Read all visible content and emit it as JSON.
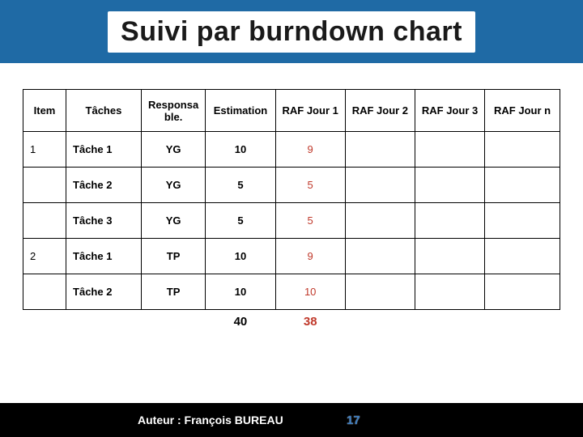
{
  "title": "Suivi par burndown chart",
  "colors": {
    "header_bg": "#1f6aa5",
    "raf1_text": "#c0392b",
    "footer_bg": "#000000",
    "pagenum": "#3a7bbf"
  },
  "table": {
    "columns": [
      "Item",
      "Tâches",
      "Responsa ble.",
      "Estimation",
      "RAF Jour 1",
      "RAF Jour 2",
      "RAF Jour 3",
      "RAF Jour n"
    ],
    "col_widths_pct": [
      8,
      14,
      12,
      13,
      13,
      13,
      13,
      14
    ],
    "rows": [
      {
        "item": "1",
        "task": "Tâche 1",
        "resp": "YG",
        "est": "10",
        "raf1": "9",
        "raf2": "",
        "raf3": "",
        "rafn": ""
      },
      {
        "item": "",
        "task": "Tâche 2",
        "resp": "YG",
        "est": "5",
        "raf1": "5",
        "raf2": "",
        "raf3": "",
        "rafn": ""
      },
      {
        "item": "",
        "task": "Tâche 3",
        "resp": "YG",
        "est": "5",
        "raf1": "5",
        "raf2": "",
        "raf3": "",
        "rafn": ""
      },
      {
        "item": "2",
        "task": "Tâche 1",
        "resp": "TP",
        "est": "10",
        "raf1": "9",
        "raf2": "",
        "raf3": "",
        "rafn": ""
      },
      {
        "item": "",
        "task": "Tâche 2",
        "resp": "TP",
        "est": "10",
        "raf1": "10",
        "raf2": "",
        "raf3": "",
        "rafn": ""
      }
    ]
  },
  "totals": {
    "est": "40",
    "raf1": "38"
  },
  "footer": {
    "author": "Auteur : François BUREAU",
    "page": "17"
  }
}
